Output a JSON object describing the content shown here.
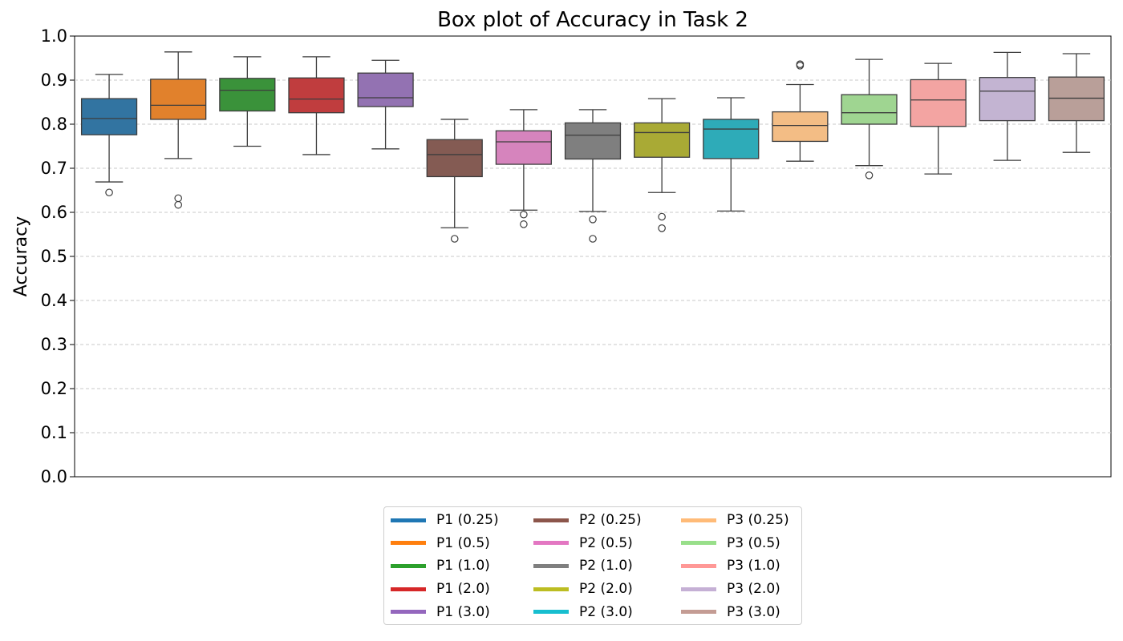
{
  "chart_data": {
    "type": "box",
    "title": "Box plot of Accuracy in Task 2",
    "ylabel": "Accuracy",
    "xlabel": "",
    "ylim": [
      0.0,
      1.0
    ],
    "yticks": [
      "0.0",
      "0.1",
      "0.2",
      "0.3",
      "0.4",
      "0.5",
      "0.6",
      "0.7",
      "0.8",
      "0.9",
      "1.0"
    ],
    "grid": "horizontal dashed",
    "legend_position": "bottom-center",
    "series": [
      {
        "name": "P1 (0.25)",
        "color": "#1f77b4",
        "box_color": "#3274a1",
        "whisker_low": 0.669,
        "q1": 0.776,
        "median": 0.813,
        "q3": 0.858,
        "whisker_high": 0.913,
        "outliers": [
          0.645
        ]
      },
      {
        "name": "P1 (0.5)",
        "color": "#ff7f0e",
        "box_color": "#e1812c",
        "whisker_low": 0.722,
        "q1": 0.811,
        "median": 0.843,
        "q3": 0.902,
        "whisker_high": 0.964,
        "outliers": [
          0.632,
          0.617
        ]
      },
      {
        "name": "P1 (1.0)",
        "color": "#2ca02c",
        "box_color": "#3a923a",
        "whisker_low": 0.75,
        "q1": 0.83,
        "median": 0.877,
        "q3": 0.904,
        "whisker_high": 0.953,
        "outliers": []
      },
      {
        "name": "P1 (2.0)",
        "color": "#d62728",
        "box_color": "#c03d3e",
        "whisker_low": 0.731,
        "q1": 0.826,
        "median": 0.857,
        "q3": 0.905,
        "whisker_high": 0.953,
        "outliers": []
      },
      {
        "name": "P1 (3.0)",
        "color": "#9467bd",
        "box_color": "#9372b2",
        "whisker_low": 0.744,
        "q1": 0.84,
        "median": 0.86,
        "q3": 0.916,
        "whisker_high": 0.945,
        "outliers": []
      },
      {
        "name": "P2 (0.25)",
        "color": "#8c564b",
        "box_color": "#845b53",
        "whisker_low": 0.565,
        "q1": 0.681,
        "median": 0.731,
        "q3": 0.765,
        "whisker_high": 0.811,
        "outliers": [
          0.54
        ]
      },
      {
        "name": "P2 (0.5)",
        "color": "#e377c2",
        "box_color": "#d684bd",
        "whisker_low": 0.605,
        "q1": 0.709,
        "median": 0.76,
        "q3": 0.785,
        "whisker_high": 0.833,
        "outliers": [
          0.595,
          0.573
        ]
      },
      {
        "name": "P2 (1.0)",
        "color": "#7f7f7f",
        "box_color": "#7f7f7f",
        "whisker_low": 0.602,
        "q1": 0.721,
        "median": 0.775,
        "q3": 0.803,
        "whisker_high": 0.833,
        "outliers": [
          0.584,
          0.54
        ]
      },
      {
        "name": "P2 (2.0)",
        "color": "#bcbd22",
        "box_color": "#a9aa35",
        "whisker_low": 0.645,
        "q1": 0.725,
        "median": 0.781,
        "q3": 0.803,
        "whisker_high": 0.858,
        "outliers": [
          0.59,
          0.564
        ]
      },
      {
        "name": "P2 (3.0)",
        "color": "#17becf",
        "box_color": "#2eabb8",
        "whisker_low": 0.603,
        "q1": 0.722,
        "median": 0.789,
        "q3": 0.811,
        "whisker_high": 0.86,
        "outliers": []
      },
      {
        "name": "P3 (0.25)",
        "color": "#ffbb78",
        "box_color": "#f3bd85",
        "whisker_low": 0.716,
        "q1": 0.761,
        "median": 0.797,
        "q3": 0.828,
        "whisker_high": 0.89,
        "outliers": [
          0.933,
          0.936
        ]
      },
      {
        "name": "P3 (0.5)",
        "color": "#98df8a",
        "box_color": "#9fd591",
        "whisker_low": 0.706,
        "q1": 0.8,
        "median": 0.826,
        "q3": 0.867,
        "whisker_high": 0.947,
        "outliers": [
          0.684
        ]
      },
      {
        "name": "P3 (1.0)",
        "color": "#ff9896",
        "box_color": "#f3a4a2",
        "whisker_low": 0.687,
        "q1": 0.795,
        "median": 0.855,
        "q3": 0.901,
        "whisker_high": 0.938,
        "outliers": []
      },
      {
        "name": "P3 (2.0)",
        "color": "#c5b0d5",
        "box_color": "#c3b4d2",
        "whisker_low": 0.718,
        "q1": 0.808,
        "median": 0.875,
        "q3": 0.906,
        "whisker_high": 0.963,
        "outliers": []
      },
      {
        "name": "P3 (3.0)",
        "color": "#c49c94",
        "box_color": "#b99f99",
        "whisker_low": 0.736,
        "q1": 0.808,
        "median": 0.859,
        "q3": 0.907,
        "whisker_high": 0.96,
        "outliers": []
      }
    ]
  }
}
